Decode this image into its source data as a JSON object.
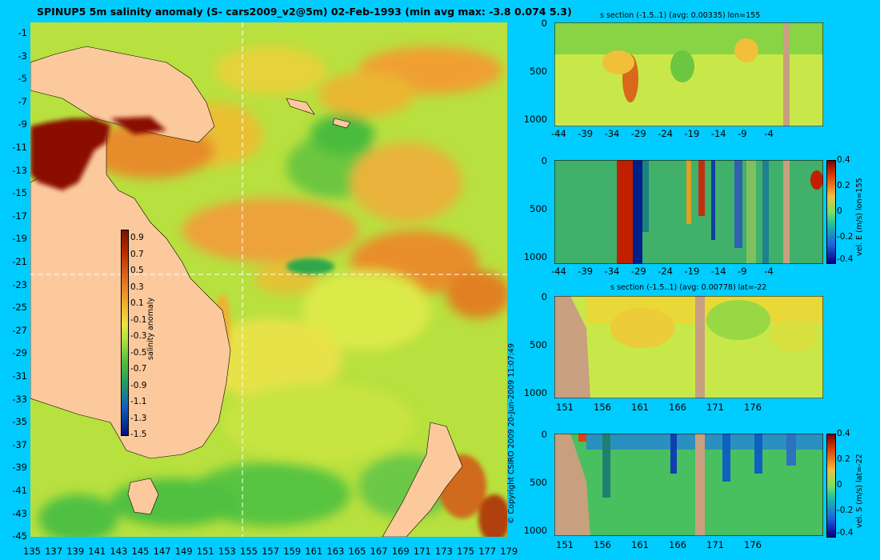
{
  "map": {
    "title": "SPINUP5 5m salinity anomaly (S- cars2009_v2@5m) 02-Feb-1993 (min avg max: -3.8 0.074 5.3)",
    "lat_ticks": [
      "-1",
      "-3",
      "-5",
      "-7",
      "-9",
      "-11",
      "-13",
      "-15",
      "-17",
      "-19",
      "-21",
      "-23",
      "-25",
      "-27",
      "-29",
      "-31",
      "-33",
      "-35",
      "-37",
      "-39",
      "-41",
      "-43",
      "-45"
    ],
    "lon_ticks": [
      "135",
      "137",
      "139",
      "141",
      "143",
      "145",
      "147",
      "149",
      "151",
      "153",
      "155",
      "157",
      "159",
      "161",
      "163",
      "165",
      "167",
      "169",
      "171",
      "173",
      "175",
      "177",
      "179"
    ],
    "colorbar_ticks": [
      "0.9",
      "0.7",
      "0.5",
      "0.3",
      "0.1",
      "-0.1",
      "-0.3",
      "-0.5",
      "-0.7",
      "-0.9",
      "-1.1",
      "-1.3",
      "-1.5"
    ],
    "colorbar_label": "salinity anomaly",
    "colors": {
      "ocean": "#b9e23c",
      "land": "#fbc99b",
      "background": "#00ccff"
    }
  },
  "copyright": "© Copyright CSIRO 2009   20-Jun-2009 11:07:49",
  "panels": [
    {
      "title": "s section (-1.5..1) (avg: 0.00335) lon=155",
      "yticks": [
        "0",
        "500",
        "1000"
      ],
      "xticks": [
        "-44",
        "-39",
        "-34",
        "-29",
        "-24",
        "-19",
        "-14",
        "-9",
        "-4"
      ],
      "cbar_ticks": [],
      "cbar_label": ""
    },
    {
      "title": "",
      "yticks": [
        "0",
        "500",
        "1000"
      ],
      "xticks": [
        "-44",
        "-39",
        "-34",
        "-29",
        "-24",
        "-19",
        "-14",
        "-9",
        "-4"
      ],
      "cbar_ticks": [
        "0.4",
        "0.2",
        "0",
        "-0.2",
        "-0.4"
      ],
      "cbar_label": "vel. E (m/s) lon=155"
    },
    {
      "title": "s section (-1.5..1) (avg: 0.00778) lat=-22",
      "yticks": [
        "0",
        "500",
        "1000"
      ],
      "xticks": [
        "151",
        "156",
        "161",
        "166",
        "171",
        "176"
      ],
      "cbar_ticks": [],
      "cbar_label": ""
    },
    {
      "title": "",
      "yticks": [
        "0",
        "500",
        "1000"
      ],
      "xticks": [
        "151",
        "156",
        "161",
        "166",
        "171",
        "176"
      ],
      "cbar_ticks": [
        "0.4",
        "0.2",
        "0",
        "-0.2",
        "-0.4"
      ],
      "cbar_label": "vel. S (m/s) lat=-22"
    }
  ]
}
